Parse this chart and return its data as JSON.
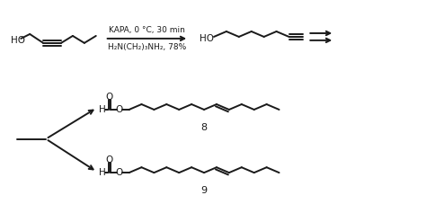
{
  "bg_color": "#ffffff",
  "line_color": "#1a1a1a",
  "text_color": "#1a1a1a",
  "reaction_arrow_text_top": "KAPA, 0 °C, 30 min",
  "reaction_arrow_text_bottom": "H₂N(CH₂)₃NH₂, 78%",
  "compound8_label": "8",
  "compound9_label": "9",
  "figsize": [
    4.74,
    2.37
  ],
  "dpi": 100
}
